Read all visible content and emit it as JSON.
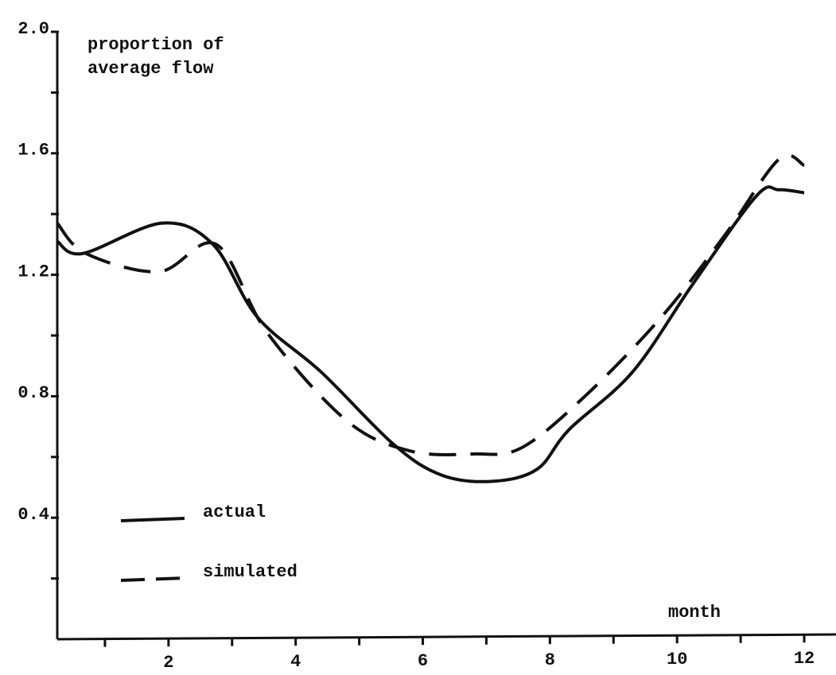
{
  "chart_data": {
    "type": "line",
    "ylabel": [
      "proportion of",
      "average flow"
    ],
    "xlabel": "month",
    "xlim": [
      0.25,
      12.5
    ],
    "ylim": [
      0,
      2.0
    ],
    "xticks": [
      2,
      4,
      6,
      8,
      10,
      12
    ],
    "xminor": [
      1,
      3,
      5,
      7,
      9,
      11
    ],
    "yticks": [
      0.4,
      0.8,
      1.2,
      1.6,
      {
        "value": 2.0,
        "label": "2.0"
      }
    ],
    "yminor": [
      0.2,
      0.6,
      1.0,
      1.4,
      1.8
    ],
    "series": [
      {
        "name": "actual",
        "color": "#111111",
        "dash": "solid",
        "x": [
          0.25,
          0.65,
          1.9,
          2.7,
          3.4,
          4.4,
          5.55,
          6.3,
          7.1,
          7.8,
          8.3,
          9.3,
          10.25,
          11.25,
          11.6,
          12
        ],
        "values": [
          1.31,
          1.27,
          1.37,
          1.3,
          1.06,
          0.88,
          0.64,
          0.54,
          0.52,
          0.56,
          0.69,
          0.88,
          1.17,
          1.46,
          1.48,
          1.47
        ]
      },
      {
        "name": "simulated",
        "color": "#111111",
        "dash": "dashed",
        "x": [
          0.25,
          0.7,
          1.85,
          2.75,
          3.55,
          4.8,
          5.8,
          6.8,
          7.55,
          8.55,
          9.75,
          10.75,
          11.6,
          12
        ],
        "values": [
          1.37,
          1.27,
          1.21,
          1.3,
          1.01,
          0.72,
          0.62,
          0.61,
          0.63,
          0.8,
          1.06,
          1.33,
          1.58,
          1.56
        ]
      }
    ]
  }
}
